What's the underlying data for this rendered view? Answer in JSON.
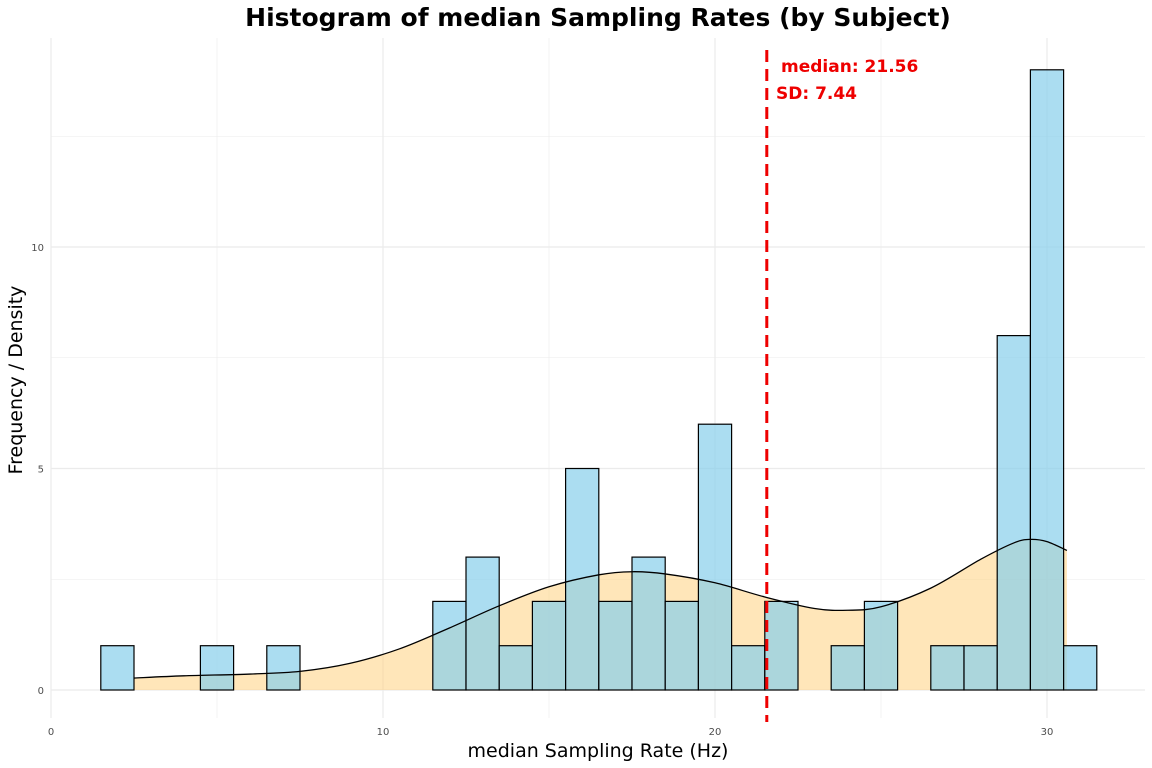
{
  "chart_data": {
    "type": "bar",
    "title": "Histogram of median Sampling Rates (by Subject)",
    "xlabel": "median Sampling Rate (Hz)",
    "ylabel": "Frequency / Density",
    "xlim": [
      0,
      33
    ],
    "ylim": [
      -0.6,
      14.5
    ],
    "xticks": [
      0,
      10,
      20,
      30
    ],
    "yticks": [
      0,
      5,
      10
    ],
    "grid": true,
    "bin_width": 1,
    "bins": [
      {
        "x0": 1.5,
        "x1": 2.5,
        "count": 1
      },
      {
        "x0": 4.5,
        "x1": 5.5,
        "count": 1
      },
      {
        "x0": 6.5,
        "x1": 7.5,
        "count": 1
      },
      {
        "x0": 11.5,
        "x1": 12.5,
        "count": 2
      },
      {
        "x0": 12.5,
        "x1": 13.5,
        "count": 3
      },
      {
        "x0": 13.5,
        "x1": 14.5,
        "count": 1
      },
      {
        "x0": 14.5,
        "x1": 15.5,
        "count": 2
      },
      {
        "x0": 15.5,
        "x1": 16.5,
        "count": 5
      },
      {
        "x0": 16.5,
        "x1": 17.5,
        "count": 2
      },
      {
        "x0": 17.5,
        "x1": 18.5,
        "count": 3
      },
      {
        "x0": 18.5,
        "x1": 19.5,
        "count": 2
      },
      {
        "x0": 19.5,
        "x1": 20.5,
        "count": 6
      },
      {
        "x0": 20.5,
        "x1": 21.5,
        "count": 1
      },
      {
        "x0": 21.5,
        "x1": 22.5,
        "count": 2
      },
      {
        "x0": 23.5,
        "x1": 24.5,
        "count": 1
      },
      {
        "x0": 24.5,
        "x1": 25.5,
        "count": 2
      },
      {
        "x0": 26.5,
        "x1": 27.5,
        "count": 1
      },
      {
        "x0": 27.5,
        "x1": 28.5,
        "count": 1
      },
      {
        "x0": 28.5,
        "x1": 29.5,
        "count": 8
      },
      {
        "x0": 29.5,
        "x1": 30.5,
        "count": 14
      },
      {
        "x0": 30.5,
        "x1": 31.5,
        "count": 1
      }
    ],
    "density_curve": [
      {
        "x": 2.5,
        "y": 0.27
      },
      {
        "x": 4.0,
        "y": 0.32
      },
      {
        "x": 6.0,
        "y": 0.36
      },
      {
        "x": 7.5,
        "y": 0.42
      },
      {
        "x": 9.0,
        "y": 0.6
      },
      {
        "x": 10.5,
        "y": 0.93
      },
      {
        "x": 12.0,
        "y": 1.4
      },
      {
        "x": 13.5,
        "y": 1.9
      },
      {
        "x": 15.0,
        "y": 2.33
      },
      {
        "x": 16.5,
        "y": 2.6
      },
      {
        "x": 17.5,
        "y": 2.67
      },
      {
        "x": 18.5,
        "y": 2.62
      },
      {
        "x": 20.0,
        "y": 2.42
      },
      {
        "x": 21.5,
        "y": 2.1
      },
      {
        "x": 23.0,
        "y": 1.84
      },
      {
        "x": 24.0,
        "y": 1.8
      },
      {
        "x": 25.0,
        "y": 1.88
      },
      {
        "x": 26.5,
        "y": 2.3
      },
      {
        "x": 28.0,
        "y": 2.95
      },
      {
        "x": 29.0,
        "y": 3.32
      },
      {
        "x": 29.5,
        "y": 3.4
      },
      {
        "x": 30.0,
        "y": 3.35
      },
      {
        "x": 30.6,
        "y": 3.15
      }
    ],
    "median_line": {
      "x": 21.56
    },
    "annotations": {
      "median": "median: 21.56",
      "sd": "SD: 7.44"
    },
    "colors": {
      "bar_fill": "#87ceeb",
      "bar_stroke": "#000000",
      "density_fill": "#ffd27f",
      "density_stroke": "#000000",
      "median_line": "#ee0000",
      "grid": "#ebebeb"
    }
  }
}
